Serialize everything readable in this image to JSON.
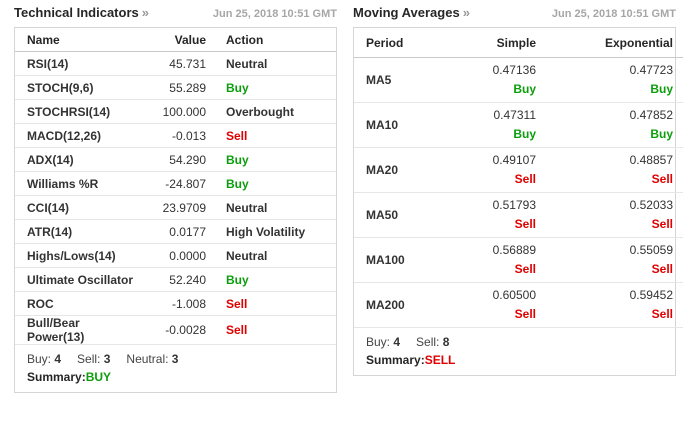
{
  "colors": {
    "buy_green": "#0c9e0c",
    "sell_red": "#e00000",
    "neutral_text": "#333333",
    "timestamp_gray": "#a6a6a6",
    "border_gray": "#d5d5d5"
  },
  "technical_indicators": {
    "title": "Technical Indicators",
    "arrow": "»",
    "timestamp": "Jun 25, 2018 10:51 GMT",
    "columns": {
      "name": "Name",
      "value": "Value",
      "action": "Action"
    },
    "rows": [
      {
        "name": "RSI(14)",
        "value": "45.731",
        "action": "Neutral",
        "action_type": "neutral"
      },
      {
        "name": "STOCH(9,6)",
        "value": "55.289",
        "action": "Buy",
        "action_type": "buy"
      },
      {
        "name": "STOCHRSI(14)",
        "value": "100.000",
        "action": "Overbought",
        "action_type": "neutral"
      },
      {
        "name": "MACD(12,26)",
        "value": "-0.013",
        "action": "Sell",
        "action_type": "sell"
      },
      {
        "name": "ADX(14)",
        "value": "54.290",
        "action": "Buy",
        "action_type": "buy"
      },
      {
        "name": "Williams %R",
        "value": "-24.807",
        "action": "Buy",
        "action_type": "buy"
      },
      {
        "name": "CCI(14)",
        "value": "23.9709",
        "action": "Neutral",
        "action_type": "neutral"
      },
      {
        "name": "ATR(14)",
        "value": "0.0177",
        "action": "High Volatility",
        "action_type": "neutral"
      },
      {
        "name": "Highs/Lows(14)",
        "value": "0.0000",
        "action": "Neutral",
        "action_type": "neutral"
      },
      {
        "name": "Ultimate Oscillator",
        "value": "52.240",
        "action": "Buy",
        "action_type": "buy"
      },
      {
        "name": "ROC",
        "value": "-1.008",
        "action": "Sell",
        "action_type": "sell"
      },
      {
        "name": "Bull/Bear Power(13)",
        "value": "-0.0028",
        "action": "Sell",
        "action_type": "sell"
      }
    ],
    "summary_counts": [
      {
        "label": "Buy:",
        "value": "4"
      },
      {
        "label": "Sell:",
        "value": "3"
      },
      {
        "label": "Neutral:",
        "value": "3"
      }
    ],
    "summary_label": "Summary:",
    "summary_value": "BUY",
    "summary_type": "buy"
  },
  "moving_averages": {
    "title": "Moving Averages",
    "arrow": "»",
    "timestamp": "Jun 25, 2018 10:51 GMT",
    "columns": {
      "period": "Period",
      "simple": "Simple",
      "exponential": "Exponential"
    },
    "rows": [
      {
        "period": "MA5",
        "simple": "0.47136",
        "simple_action": "Buy",
        "simple_type": "buy",
        "exponential": "0.47723",
        "exp_action": "Buy",
        "exp_type": "buy"
      },
      {
        "period": "MA10",
        "simple": "0.47311",
        "simple_action": "Buy",
        "simple_type": "buy",
        "exponential": "0.47852",
        "exp_action": "Buy",
        "exp_type": "buy"
      },
      {
        "period": "MA20",
        "simple": "0.49107",
        "simple_action": "Sell",
        "simple_type": "sell",
        "exponential": "0.48857",
        "exp_action": "Sell",
        "exp_type": "sell"
      },
      {
        "period": "MA50",
        "simple": "0.51793",
        "simple_action": "Sell",
        "simple_type": "sell",
        "exponential": "0.52033",
        "exp_action": "Sell",
        "exp_type": "sell"
      },
      {
        "period": "MA100",
        "simple": "0.56889",
        "simple_action": "Sell",
        "simple_type": "sell",
        "exponential": "0.55059",
        "exp_action": "Sell",
        "exp_type": "sell"
      },
      {
        "period": "MA200",
        "simple": "0.60500",
        "simple_action": "Sell",
        "simple_type": "sell",
        "exponential": "0.59452",
        "exp_action": "Sell",
        "exp_type": "sell"
      }
    ],
    "summary_counts": [
      {
        "label": "Buy:",
        "value": "4"
      },
      {
        "label": "Sell:",
        "value": "8"
      }
    ],
    "summary_label": "Summary:",
    "summary_value": "SELL",
    "summary_type": "sell"
  }
}
